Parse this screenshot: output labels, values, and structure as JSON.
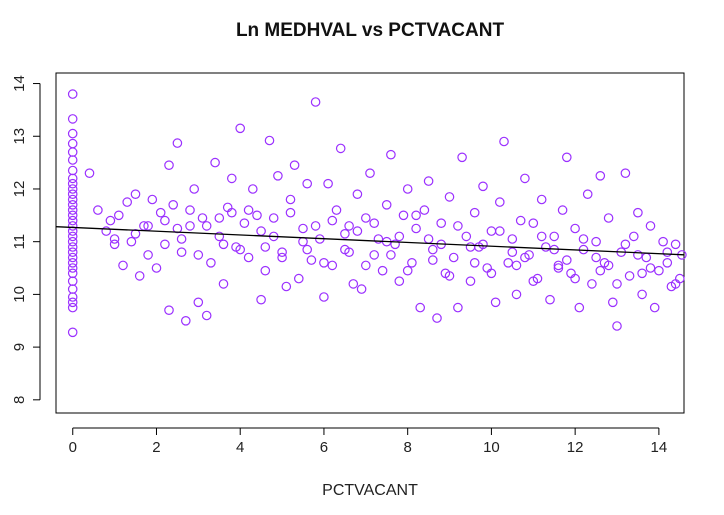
{
  "chart_data": {
    "type": "scatter",
    "title": "Ln MEDHVAL vs PCTVACANT",
    "xlabel": "PCTVACANT",
    "ylabel": "",
    "xlim": [
      -0.4,
      14.6
    ],
    "ylim": [
      7.75,
      14.2
    ],
    "xticks": [
      0,
      2,
      4,
      6,
      8,
      10,
      12,
      14
    ],
    "yticks": [
      8,
      9,
      10,
      11,
      12,
      13,
      14
    ],
    "grid": false,
    "point_color": "#9b30ff",
    "line_color": "#000000",
    "regression_line": {
      "intercept": 11.27,
      "slope": -0.0355
    },
    "points": [
      [
        0,
        13.8
      ],
      [
        0,
        13.33
      ],
      [
        0,
        13.05
      ],
      [
        0,
        12.86
      ],
      [
        0,
        12.7
      ],
      [
        0,
        12.55
      ],
      [
        0,
        12.35
      ],
      [
        0,
        12.2
      ],
      [
        0,
        12.1
      ],
      [
        0,
        12.0
      ],
      [
        0,
        11.9
      ],
      [
        0,
        11.8
      ],
      [
        0,
        11.7
      ],
      [
        0,
        11.6
      ],
      [
        0,
        11.5
      ],
      [
        0,
        11.4
      ],
      [
        0,
        11.3
      ],
      [
        0,
        11.2
      ],
      [
        0,
        11.1
      ],
      [
        0,
        11.0
      ],
      [
        0,
        10.9
      ],
      [
        0,
        10.8
      ],
      [
        0,
        10.7
      ],
      [
        0,
        10.6
      ],
      [
        0,
        10.5
      ],
      [
        0,
        10.4
      ],
      [
        0,
        10.25
      ],
      [
        0,
        10.1
      ],
      [
        0,
        9.95
      ],
      [
        0,
        9.85
      ],
      [
        0,
        9.75
      ],
      [
        0,
        9.28
      ],
      [
        0.4,
        12.3
      ],
      [
        0.6,
        11.6
      ],
      [
        0.8,
        11.2
      ],
      [
        0.9,
        11.4
      ],
      [
        1.0,
        10.95
      ],
      [
        1.1,
        11.5
      ],
      [
        1.2,
        10.55
      ],
      [
        1.3,
        11.75
      ],
      [
        1.4,
        11.0
      ],
      [
        1.5,
        11.9
      ],
      [
        1.6,
        10.35
      ],
      [
        1.7,
        11.3
      ],
      [
        1.8,
        10.75
      ],
      [
        1.9,
        11.8
      ],
      [
        2.0,
        10.5
      ],
      [
        2.1,
        11.55
      ],
      [
        2.2,
        10.95
      ],
      [
        2.3,
        9.7
      ],
      [
        2.3,
        12.45
      ],
      [
        2.4,
        11.7
      ],
      [
        2.5,
        12.87
      ],
      [
        2.6,
        10.8
      ],
      [
        2.7,
        9.5
      ],
      [
        2.8,
        11.3
      ],
      [
        2.9,
        12.0
      ],
      [
        3.0,
        9.85
      ],
      [
        3.1,
        11.45
      ],
      [
        3.2,
        9.6
      ],
      [
        3.3,
        10.6
      ],
      [
        3.4,
        12.5
      ],
      [
        3.5,
        11.1
      ],
      [
        3.6,
        10.2
      ],
      [
        3.7,
        11.65
      ],
      [
        3.8,
        12.2
      ],
      [
        3.9,
        10.9
      ],
      [
        4.0,
        13.15
      ],
      [
        4.1,
        11.35
      ],
      [
        4.2,
        10.7
      ],
      [
        4.3,
        12.0
      ],
      [
        4.4,
        11.5
      ],
      [
        4.5,
        9.9
      ],
      [
        4.6,
        10.45
      ],
      [
        4.7,
        12.92
      ],
      [
        4.8,
        11.1
      ],
      [
        4.9,
        12.25
      ],
      [
        5.0,
        10.8
      ],
      [
        5.1,
        10.15
      ],
      [
        5.2,
        11.8
      ],
      [
        5.3,
        12.45
      ],
      [
        5.4,
        10.3
      ],
      [
        5.5,
        11.25
      ],
      [
        5.6,
        12.1
      ],
      [
        5.7,
        10.65
      ],
      [
        5.8,
        13.65
      ],
      [
        5.9,
        11.05
      ],
      [
        6.0,
        9.95
      ],
      [
        6.1,
        12.1
      ],
      [
        6.2,
        10.55
      ],
      [
        6.3,
        11.6
      ],
      [
        6.4,
        12.77
      ],
      [
        6.5,
        10.85
      ],
      [
        6.6,
        11.3
      ],
      [
        6.7,
        10.2
      ],
      [
        6.8,
        11.9
      ],
      [
        6.9,
        10.1
      ],
      [
        7.0,
        11.45
      ],
      [
        7.1,
        12.3
      ],
      [
        7.2,
        10.75
      ],
      [
        7.3,
        11.05
      ],
      [
        7.4,
        10.45
      ],
      [
        7.5,
        11.7
      ],
      [
        7.6,
        12.65
      ],
      [
        7.7,
        10.95
      ],
      [
        7.8,
        10.25
      ],
      [
        7.9,
        11.5
      ],
      [
        8.0,
        12.0
      ],
      [
        8.1,
        10.6
      ],
      [
        8.2,
        11.25
      ],
      [
        8.3,
        9.75
      ],
      [
        8.4,
        11.6
      ],
      [
        8.5,
        12.15
      ],
      [
        8.6,
        10.85
      ],
      [
        8.7,
        9.55
      ],
      [
        8.8,
        11.35
      ],
      [
        8.9,
        10.4
      ],
      [
        9.0,
        11.85
      ],
      [
        9.1,
        10.7
      ],
      [
        9.2,
        9.75
      ],
      [
        9.3,
        12.6
      ],
      [
        9.4,
        11.1
      ],
      [
        9.5,
        10.25
      ],
      [
        9.6,
        11.55
      ],
      [
        9.7,
        10.9
      ],
      [
        9.8,
        12.05
      ],
      [
        9.9,
        10.5
      ],
      [
        10.0,
        11.2
      ],
      [
        10.1,
        9.85
      ],
      [
        10.2,
        11.75
      ],
      [
        10.3,
        12.9
      ],
      [
        10.4,
        10.6
      ],
      [
        10.5,
        11.05
      ],
      [
        10.6,
        10.0
      ],
      [
        10.7,
        11.4
      ],
      [
        10.8,
        12.2
      ],
      [
        10.9,
        10.75
      ],
      [
        11.0,
        11.35
      ],
      [
        11.1,
        10.3
      ],
      [
        11.2,
        11.8
      ],
      [
        11.3,
        10.9
      ],
      [
        11.4,
        9.9
      ],
      [
        11.5,
        11.1
      ],
      [
        11.6,
        10.55
      ],
      [
        11.7,
        11.6
      ],
      [
        11.8,
        12.6
      ],
      [
        11.9,
        10.4
      ],
      [
        12.0,
        11.25
      ],
      [
        12.1,
        9.75
      ],
      [
        12.2,
        10.85
      ],
      [
        12.3,
        11.9
      ],
      [
        12.4,
        10.2
      ],
      [
        12.5,
        11.0
      ],
      [
        12.6,
        12.25
      ],
      [
        12.7,
        10.6
      ],
      [
        12.8,
        11.45
      ],
      [
        12.9,
        9.85
      ],
      [
        13.0,
        9.4
      ],
      [
        13.1,
        10.8
      ],
      [
        13.2,
        12.3
      ],
      [
        13.3,
        10.35
      ],
      [
        13.4,
        11.1
      ],
      [
        13.5,
        11.55
      ],
      [
        13.6,
        10.0
      ],
      [
        13.7,
        10.7
      ],
      [
        13.8,
        11.3
      ],
      [
        13.9,
        9.75
      ],
      [
        14.0,
        10.45
      ],
      [
        14.1,
        11.0
      ],
      [
        14.2,
        10.6
      ],
      [
        14.3,
        10.15
      ],
      [
        14.4,
        10.95
      ],
      [
        14.5,
        10.3
      ],
      [
        14.55,
        10.75
      ],
      [
        1.0,
        11.05
      ],
      [
        1.5,
        11.15
      ],
      [
        2.5,
        11.25
      ],
      [
        3.5,
        11.45
      ],
      [
        4.5,
        11.2
      ],
      [
        5.5,
        11.0
      ],
      [
        6.5,
        11.15
      ],
      [
        7.5,
        11.0
      ],
      [
        8.5,
        11.05
      ],
      [
        9.5,
        10.9
      ],
      [
        10.5,
        10.8
      ],
      [
        11.5,
        10.85
      ],
      [
        12.5,
        10.7
      ],
      [
        13.5,
        10.75
      ],
      [
        2.8,
        11.6
      ],
      [
        3.8,
        11.55
      ],
      [
        4.8,
        11.45
      ],
      [
        5.8,
        11.3
      ],
      [
        6.8,
        11.2
      ],
      [
        7.8,
        11.1
      ],
      [
        8.8,
        10.95
      ],
      [
        9.8,
        10.95
      ],
      [
        10.8,
        10.7
      ],
      [
        11.8,
        10.65
      ],
      [
        12.8,
        10.55
      ],
      [
        13.8,
        10.5
      ],
      [
        3.0,
        10.75
      ],
      [
        4.0,
        10.85
      ],
      [
        5.0,
        10.7
      ],
      [
        6.0,
        10.6
      ],
      [
        7.0,
        10.55
      ],
      [
        8.0,
        10.45
      ],
      [
        9.0,
        10.35
      ],
      [
        10.0,
        10.4
      ],
      [
        11.0,
        10.25
      ],
      [
        12.0,
        10.3
      ],
      [
        13.0,
        10.2
      ],
      [
        2.2,
        11.4
      ],
      [
        3.2,
        11.3
      ],
      [
        4.2,
        11.6
      ],
      [
        5.2,
        11.55
      ],
      [
        6.2,
        11.4
      ],
      [
        7.2,
        11.35
      ],
      [
        8.2,
        11.5
      ],
      [
        9.2,
        11.3
      ],
      [
        10.2,
        11.2
      ],
      [
        11.2,
        11.1
      ],
      [
        12.2,
        11.05
      ],
      [
        13.2,
        10.95
      ],
      [
        14.2,
        10.8
      ],
      [
        1.8,
        11.3
      ],
      [
        2.6,
        11.05
      ],
      [
        3.6,
        10.95
      ],
      [
        4.6,
        10.9
      ],
      [
        5.6,
        10.85
      ],
      [
        6.6,
        10.8
      ],
      [
        7.6,
        10.75
      ],
      [
        8.6,
        10.65
      ],
      [
        9.6,
        10.6
      ],
      [
        10.6,
        10.55
      ],
      [
        11.6,
        10.5
      ],
      [
        12.6,
        10.45
      ],
      [
        13.6,
        10.4
      ],
      [
        14.4,
        10.2
      ]
    ]
  }
}
